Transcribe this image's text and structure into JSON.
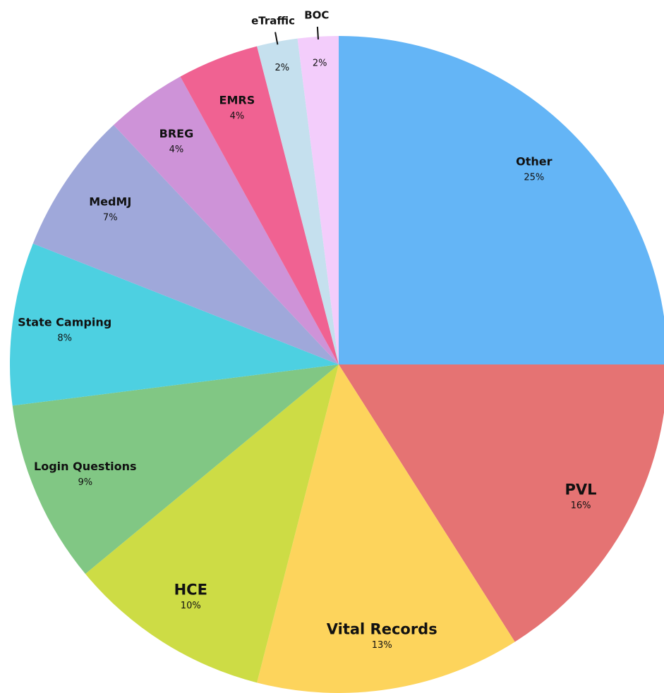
{
  "chart_data": {
    "type": "pie",
    "categories": [
      "Other",
      "PVL",
      "Vital Records",
      "HCE",
      "Login Questions",
      "State Camping",
      "MedMJ",
      "BREG",
      "EMRS",
      "eTraffic",
      "BOC"
    ],
    "values": [
      25,
      16,
      13,
      10,
      9,
      8,
      7,
      4,
      4,
      2,
      2
    ],
    "value_labels": [
      "25%",
      "16%",
      "13%",
      "10%",
      "9%",
      "8%",
      "7%",
      "4%",
      "4%",
      "2%",
      "2%"
    ],
    "colors": [
      "#64b5f6",
      "#e57373",
      "#fdd45c",
      "#cddc45",
      "#81c784",
      "#4dd0e1",
      "#9fa8da",
      "#ce93d8",
      "#f06292",
      "#c5e0ee",
      "#f3cdfb"
    ]
  }
}
